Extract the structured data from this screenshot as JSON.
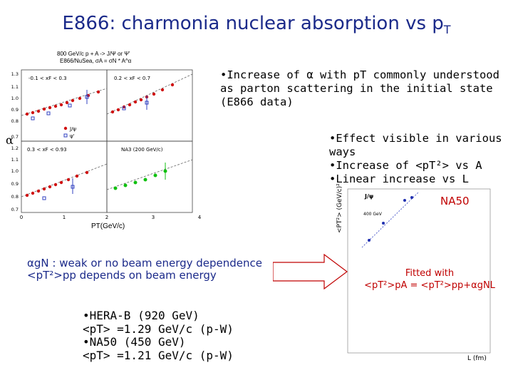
{
  "slide": {
    "title_main": "E866: charmonia nuclear absorption vs p",
    "title_sub": "T"
  },
  "plot_left": {
    "header1": "800 GeV/c p + A -> J/Ψ or Ψ'",
    "header2": "E866/NuSea, σA = σN * A^α",
    "panel1_label": "-0.1 < xF < 0.3",
    "panel2_label": "0.2 < xF < 0.7",
    "panel3_label": "0.3 < xF < 0.93",
    "panel4_label": "NA3 (200 GeV/c)",
    "legend_jpsi": "J/ψ",
    "legend_psi": "ψ'",
    "ylabel": "α",
    "xlabel": "PT(GeV/c)",
    "yticks_top": [
      "1.3",
      "1.1",
      "1.0",
      "0.9",
      "0.8",
      "0.7"
    ],
    "yticks_bottom": [
      "1.2",
      "1.1",
      "1.0",
      "0.9",
      "0.8",
      "0.7"
    ],
    "xticks": [
      "0",
      "1",
      "2",
      "3",
      "4"
    ],
    "colors": {
      "jpsi": "#d01010",
      "psi": "#3040c0",
      "na3": "#10c010"
    }
  },
  "plot_right": {
    "legend": "J/ψ",
    "energy": "400 GeV",
    "ylabel": "<PT²> (GeV/c)²",
    "xlabel": "L (fm)",
    "label_na50": "NA50",
    "fitted_line1": "Fitted with",
    "fitted_line2": "<pT²>pA = <pT²>pp+αgNL"
  },
  "text": {
    "bullet1": "•Increase of α with pT commonly understood as parton scattering in the initial state (E866 data)",
    "bullet2": "•Effect visible in various ways",
    "bullet3": "•Increase of <pT²> vs A",
    "bullet4": "•Linear increase vs L",
    "box_line1": "αgN : weak or no beam energy dependence",
    "box_line2": "<pT²>pp depends on beam energy",
    "hera_line1": "•HERA-B (920 GeV)",
    "hera_line2": "<pT> =1.29 GeV/c (p-W)",
    "na50_line1": "•NA50 (450 GeV)",
    "na50_line2": "<pT> =1.21 GeV/c (p-W)"
  }
}
